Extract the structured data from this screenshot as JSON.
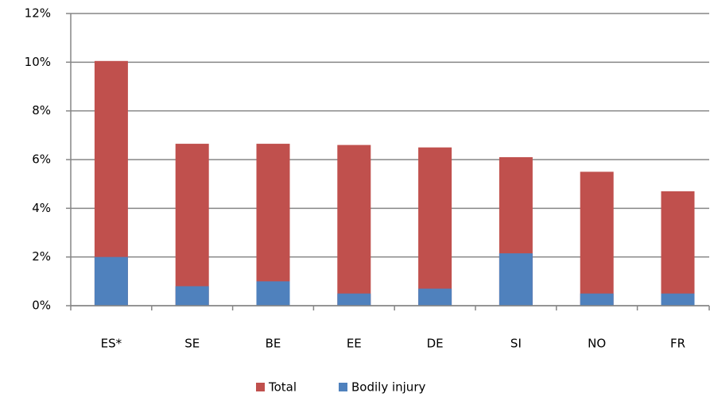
{
  "chart_data": {
    "type": "bar",
    "overlap": true,
    "categories": [
      "ES*",
      "SE",
      "BE",
      "EE",
      "DE",
      "SI",
      "NO",
      "FR"
    ],
    "series": [
      {
        "name": "Total",
        "color": "#c0504d",
        "values": [
          10.05,
          6.65,
          6.65,
          6.6,
          6.5,
          6.1,
          5.5,
          4.7
        ]
      },
      {
        "name": "Bodily injury",
        "color": "#4f81bd",
        "values": [
          2.0,
          0.8,
          1.0,
          0.5,
          0.7,
          2.15,
          0.5,
          0.5
        ]
      }
    ],
    "ylim": [
      0,
      12
    ],
    "yticks": [
      {
        "value": 0,
        "label": "0%"
      },
      {
        "value": 2,
        "label": "2%"
      },
      {
        "value": 4,
        "label": "4%"
      },
      {
        "value": 6,
        "label": "6%"
      },
      {
        "value": 8,
        "label": "8%"
      },
      {
        "value": 10,
        "label": "10%"
      },
      {
        "value": 12,
        "label": "12%"
      }
    ],
    "grid": true,
    "legend": "bottom"
  }
}
